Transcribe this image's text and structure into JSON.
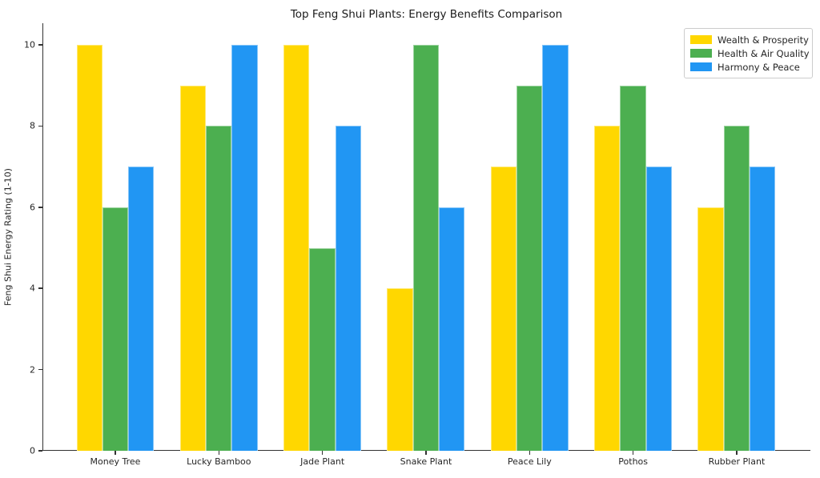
{
  "figure": {
    "background": "#ffffff",
    "text_color": "#262626",
    "axis_color": "#333333"
  },
  "chart_data": {
    "type": "bar",
    "title": "Top Feng Shui Plants: Energy Benefits Comparison",
    "xlabel": "",
    "ylabel": "Feng Shui Energy Rating (1-10)",
    "categories": [
      "Money Tree",
      "Lucky Bamboo",
      "Jade Plant",
      "Snake Plant",
      "Peace Lily",
      "Pothos",
      "Rubber Plant"
    ],
    "series": [
      {
        "name": "Wealth & Prosperity",
        "color": "#FFD700",
        "values": [
          10,
          9,
          10,
          4,
          7,
          8,
          6
        ]
      },
      {
        "name": "Health & Air Quality",
        "color": "#4CAF50",
        "values": [
          6,
          8,
          5,
          10,
          9,
          9,
          8
        ]
      },
      {
        "name": "Harmony & Peace",
        "color": "#2196F3",
        "values": [
          7,
          10,
          8,
          6,
          10,
          7,
          7
        ]
      }
    ],
    "ylim": [
      0,
      10.5
    ],
    "yticks": [
      0,
      2,
      4,
      6,
      8,
      10
    ],
    "grid": false,
    "legend_position": "upper right"
  }
}
